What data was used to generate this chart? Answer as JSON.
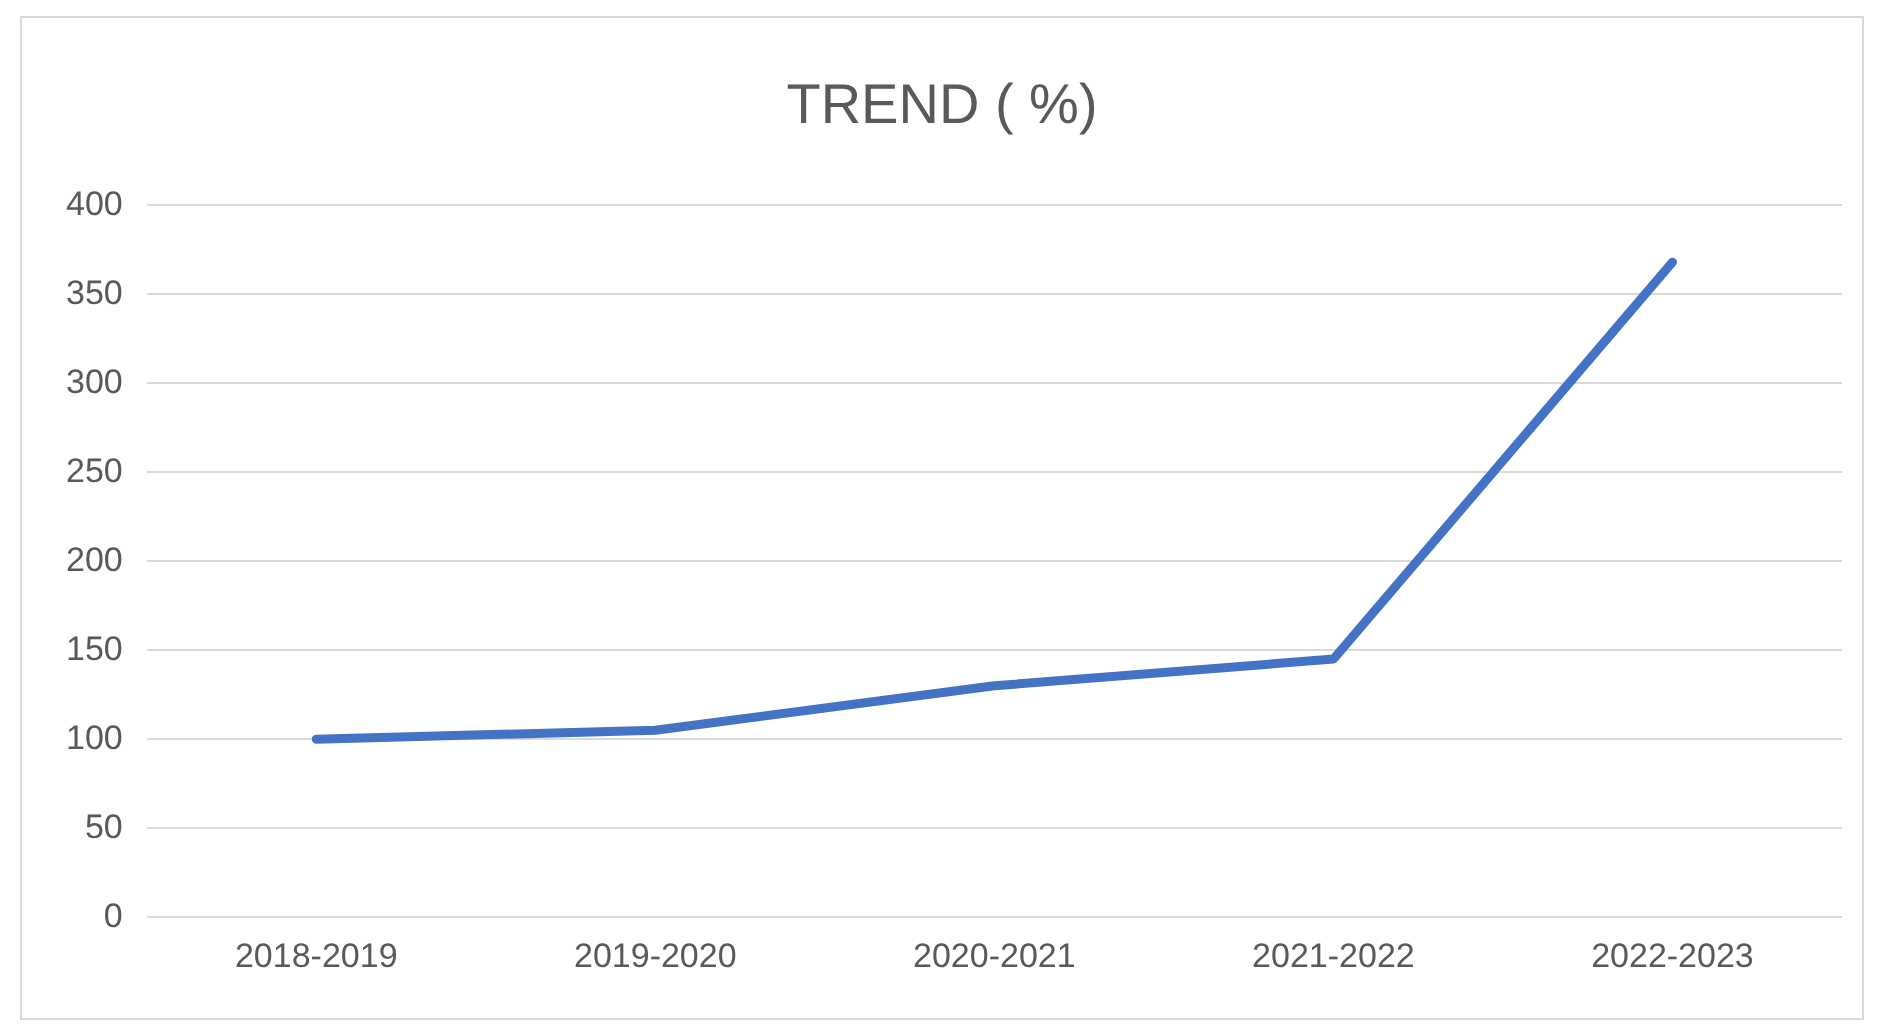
{
  "chart_data": {
    "type": "line",
    "title": "TREND ( %)",
    "categories": [
      "2018-2019",
      "2019-2020",
      "2020-2021",
      "2021-2022",
      "2022-2023"
    ],
    "series": [
      {
        "color": "#4472c4",
        "values": [
          100,
          105,
          130,
          145,
          368
        ]
      }
    ],
    "ylim": [
      0,
      400
    ],
    "yticks": [
      0,
      50,
      100,
      150,
      200,
      250,
      300,
      350,
      400
    ],
    "grid": "y",
    "legend": false,
    "marker": "none",
    "line_style": "solid"
  }
}
